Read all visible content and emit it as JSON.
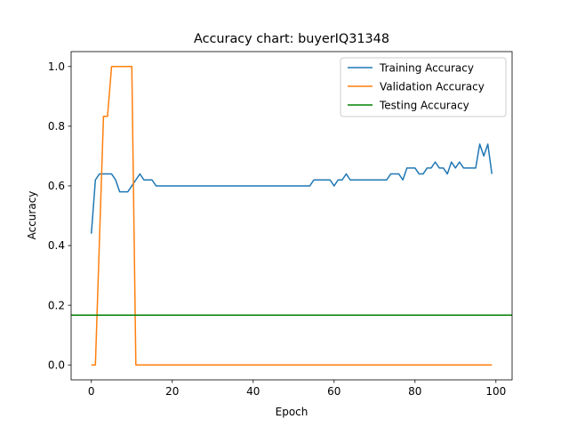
{
  "chart_data": {
    "type": "line",
    "title": "Accuracy chart: buyerIQ31348",
    "xlabel": "Epoch",
    "ylabel": "Accuracy",
    "xlim": [
      -5,
      104
    ],
    "ylim": [
      -0.05,
      1.05
    ],
    "xticks": [
      0,
      20,
      40,
      60,
      80,
      100
    ],
    "yticks": [
      0.0,
      0.2,
      0.4,
      0.6,
      0.8,
      1.0
    ],
    "grid": false,
    "legend_position": "top-right",
    "series": [
      {
        "name": "Training Accuracy",
        "color": "#1f77b4",
        "x": [
          0,
          1,
          2,
          3,
          4,
          5,
          6,
          7,
          8,
          9,
          10,
          11,
          12,
          13,
          14,
          15,
          16,
          17,
          18,
          19,
          20,
          21,
          22,
          23,
          24,
          25,
          26,
          27,
          28,
          29,
          30,
          31,
          32,
          33,
          34,
          35,
          36,
          37,
          38,
          39,
          40,
          41,
          42,
          43,
          44,
          45,
          46,
          47,
          48,
          49,
          50,
          51,
          52,
          53,
          54,
          55,
          56,
          57,
          58,
          59,
          60,
          61,
          62,
          63,
          64,
          65,
          66,
          67,
          68,
          69,
          70,
          71,
          72,
          73,
          74,
          75,
          76,
          77,
          78,
          79,
          80,
          81,
          82,
          83,
          84,
          85,
          86,
          87,
          88,
          89,
          90,
          91,
          92,
          93,
          94,
          95,
          96,
          97,
          98,
          99
        ],
        "values": [
          0.44,
          0.62,
          0.64,
          0.64,
          0.64,
          0.64,
          0.62,
          0.58,
          0.58,
          0.58,
          0.6,
          0.62,
          0.64,
          0.62,
          0.62,
          0.62,
          0.6,
          0.6,
          0.6,
          0.6,
          0.6,
          0.6,
          0.6,
          0.6,
          0.6,
          0.6,
          0.6,
          0.6,
          0.6,
          0.6,
          0.6,
          0.6,
          0.6,
          0.6,
          0.6,
          0.6,
          0.6,
          0.6,
          0.6,
          0.6,
          0.6,
          0.6,
          0.6,
          0.6,
          0.6,
          0.6,
          0.6,
          0.6,
          0.6,
          0.6,
          0.6,
          0.6,
          0.6,
          0.6,
          0.6,
          0.62,
          0.62,
          0.62,
          0.62,
          0.62,
          0.6,
          0.62,
          0.62,
          0.64,
          0.62,
          0.62,
          0.62,
          0.62,
          0.62,
          0.62,
          0.62,
          0.62,
          0.62,
          0.62,
          0.64,
          0.64,
          0.64,
          0.62,
          0.66,
          0.66,
          0.66,
          0.64,
          0.64,
          0.66,
          0.66,
          0.68,
          0.66,
          0.66,
          0.64,
          0.68,
          0.66,
          0.68,
          0.66,
          0.66,
          0.66,
          0.66,
          0.74,
          0.7,
          0.74,
          0.64
        ]
      },
      {
        "name": "Validation Accuracy",
        "color": "#ff7f0e",
        "x": [
          0,
          1,
          2,
          3,
          4,
          5,
          6,
          7,
          8,
          9,
          10,
          11,
          12,
          13,
          14,
          15,
          16,
          17,
          18,
          19,
          20,
          21,
          22,
          23,
          24,
          25,
          26,
          27,
          28,
          29,
          30,
          31,
          32,
          33,
          34,
          35,
          36,
          37,
          38,
          39,
          40,
          41,
          42,
          43,
          44,
          45,
          46,
          47,
          48,
          49,
          50,
          51,
          52,
          53,
          54,
          55,
          56,
          57,
          58,
          59,
          60,
          61,
          62,
          63,
          64,
          65,
          66,
          67,
          68,
          69,
          70,
          71,
          72,
          73,
          74,
          75,
          76,
          77,
          78,
          79,
          80,
          81,
          82,
          83,
          84,
          85,
          86,
          87,
          88,
          89,
          90,
          91,
          92,
          93,
          94,
          95,
          96,
          97,
          98,
          99
        ],
        "values": [
          0.0,
          0.0,
          0.4167,
          0.8333,
          0.8333,
          1.0,
          1.0,
          1.0,
          1.0,
          1.0,
          1.0,
          0.0,
          0.0,
          0.0,
          0.0,
          0.0,
          0.0,
          0.0,
          0.0,
          0.0,
          0.0,
          0.0,
          0.0,
          0.0,
          0.0,
          0.0,
          0.0,
          0.0,
          0.0,
          0.0,
          0.0,
          0.0,
          0.0,
          0.0,
          0.0,
          0.0,
          0.0,
          0.0,
          0.0,
          0.0,
          0.0,
          0.0,
          0.0,
          0.0,
          0.0,
          0.0,
          0.0,
          0.0,
          0.0,
          0.0,
          0.0,
          0.0,
          0.0,
          0.0,
          0.0,
          0.0,
          0.0,
          0.0,
          0.0,
          0.0,
          0.0,
          0.0,
          0.0,
          0.0,
          0.0,
          0.0,
          0.0,
          0.0,
          0.0,
          0.0,
          0.0,
          0.0,
          0.0,
          0.0,
          0.0,
          0.0,
          0.0,
          0.0,
          0.0,
          0.0,
          0.0,
          0.0,
          0.0,
          0.0,
          0.0,
          0.0,
          0.0,
          0.0,
          0.0,
          0.0,
          0.0,
          0.0,
          0.0,
          0.0,
          0.0,
          0.0,
          0.0,
          0.0,
          0.0,
          0.0
        ]
      },
      {
        "name": "Testing Accuracy",
        "color": "#008000",
        "type": "hline",
        "value": 0.1667
      }
    ]
  }
}
